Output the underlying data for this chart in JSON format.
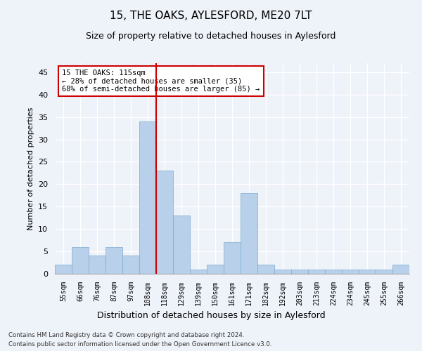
{
  "title": "15, THE OAKS, AYLESFORD, ME20 7LT",
  "subtitle": "Size of property relative to detached houses in Aylesford",
  "xlabel": "Distribution of detached houses by size in Aylesford",
  "ylabel": "Number of detached properties",
  "categories": [
    "55sqm",
    "66sqm",
    "76sqm",
    "87sqm",
    "97sqm",
    "108sqm",
    "118sqm",
    "129sqm",
    "139sqm",
    "150sqm",
    "161sqm",
    "171sqm",
    "182sqm",
    "192sqm",
    "203sqm",
    "213sqm",
    "224sqm",
    "234sqm",
    "245sqm",
    "255sqm",
    "266sqm"
  ],
  "values": [
    2,
    6,
    4,
    6,
    4,
    34,
    23,
    13,
    1,
    2,
    7,
    18,
    2,
    1,
    1,
    1,
    1,
    1,
    1,
    1,
    2
  ],
  "bar_color": "#b8d0ea",
  "bar_edge_color": "#7aaad0",
  "vline_color": "#cc0000",
  "annotation_text": "15 THE OAKS: 115sqm\n← 28% of detached houses are smaller (35)\n68% of semi-detached houses are larger (85) →",
  "annotation_box_color": "#ffffff",
  "annotation_box_edge_color": "#cc0000",
  "ylim": [
    0,
    47
  ],
  "yticks": [
    0,
    5,
    10,
    15,
    20,
    25,
    30,
    35,
    40,
    45
  ],
  "footnote_line1": "Contains HM Land Registry data © Crown copyright and database right 2024.",
  "footnote_line2": "Contains public sector information licensed under the Open Government Licence v3.0.",
  "background_color": "#eef2f9",
  "plot_bg_color": "#eef2f9",
  "grid_color": "#ffffff"
}
